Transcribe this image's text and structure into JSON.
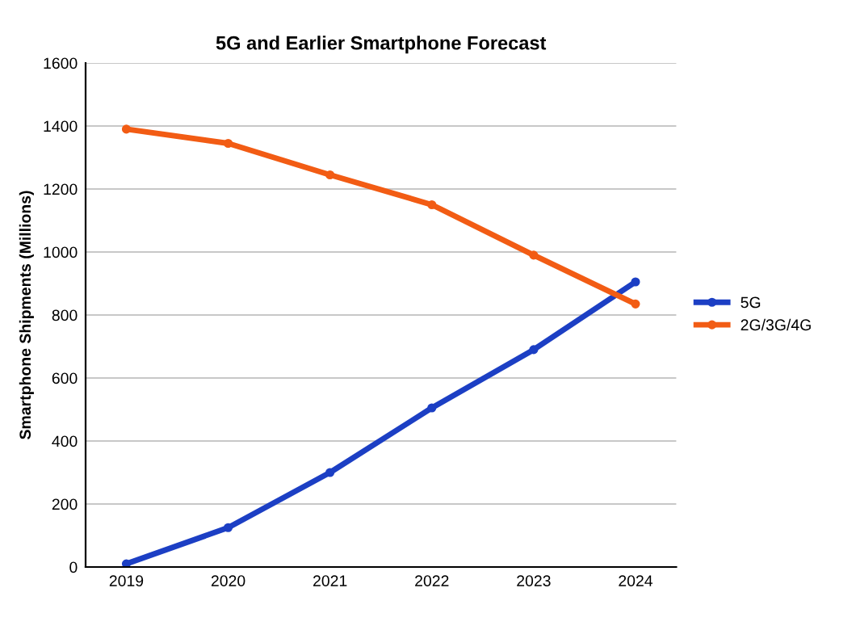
{
  "chart_data": {
    "type": "line",
    "title": "5G and Earlier Smartphone Forecast",
    "ylabel": "Smartphone Shipments (Millions)",
    "categories": [
      "2019",
      "2020",
      "2021",
      "2022",
      "2023",
      "2024"
    ],
    "series": [
      {
        "name": "5G",
        "color": "#1c3fc4",
        "values": [
          10,
          125,
          300,
          505,
          690,
          905
        ]
      },
      {
        "name": "2G/3G/4G",
        "color": "#f25c14",
        "values": [
          1390,
          1345,
          1245,
          1150,
          990,
          835
        ]
      }
    ],
    "ylim": [
      0,
      1600
    ],
    "yticks": [
      0,
      200,
      400,
      600,
      800,
      1000,
      1200,
      1400,
      1600
    ],
    "grid": "y",
    "legend": "right",
    "marker": "circle",
    "line_style": "solid"
  }
}
